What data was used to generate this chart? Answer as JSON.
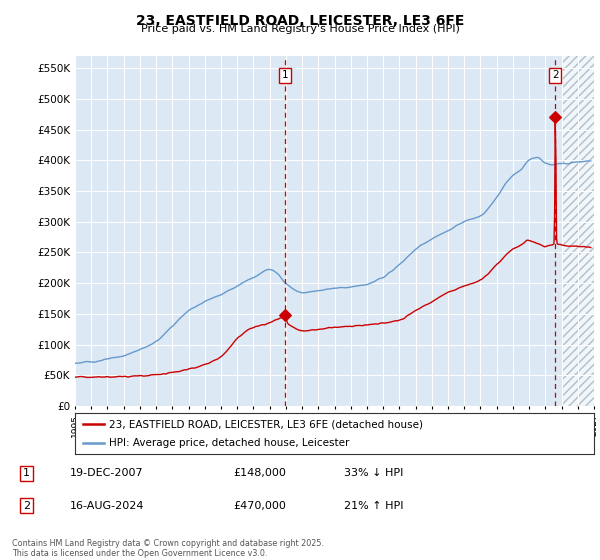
{
  "title": "23, EASTFIELD ROAD, LEICESTER, LE3 6FE",
  "subtitle": "Price paid vs. HM Land Registry's House Price Index (HPI)",
  "background_color": "#dce9f5",
  "red_color": "#cc0000",
  "blue_color": "#6699cc",
  "hatch_color": "#aabbcc",
  "annotation1_date": "19-DEC-2007",
  "annotation1_price": "£148,000",
  "annotation1_hpi": "33% ↓ HPI",
  "annotation1_year": 2007.97,
  "annotation1_value": 148000,
  "annotation2_date": "16-AUG-2024",
  "annotation2_price": "£470,000",
  "annotation2_hpi": "21% ↑ HPI",
  "annotation2_year": 2024.62,
  "annotation2_value": 470000,
  "legend_label1": "23, EASTFIELD ROAD, LEICESTER, LE3 6FE (detached house)",
  "legend_label2": "HPI: Average price, detached house, Leicester",
  "footer": "Contains HM Land Registry data © Crown copyright and database right 2025.\nThis data is licensed under the Open Government Licence v3.0.",
  "ylim_max": 570000,
  "ylim_min": 0,
  "xmin": 1995,
  "xmax": 2027
}
